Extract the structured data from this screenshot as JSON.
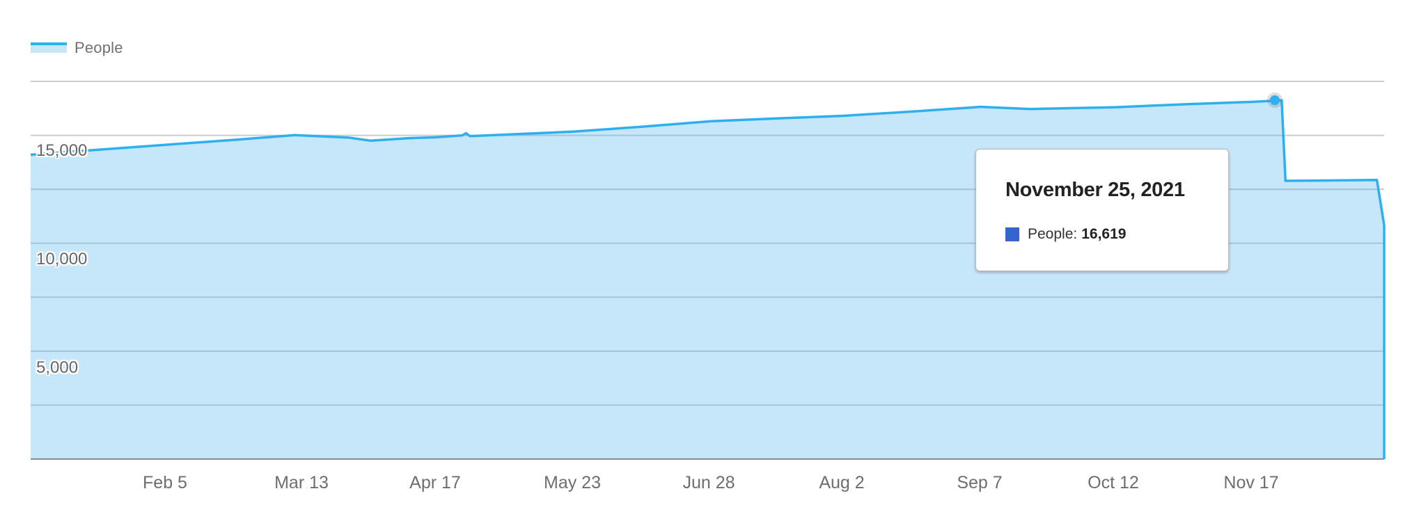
{
  "legend": {
    "label": "People",
    "line_color": "#2eaff0",
    "fill_color": "#c6e6f9"
  },
  "y_axis": {
    "labels": [
      {
        "text": "15,000",
        "value": 15000
      },
      {
        "text": "10,000",
        "value": 10000
      },
      {
        "text": "5,000",
        "value": 5000
      }
    ]
  },
  "x_axis": {
    "labels": [
      "Feb 5",
      "Mar 13",
      "Apr 17",
      "May 23",
      "Jun 28",
      "Aug 2",
      "Sep 7",
      "Oct 12",
      "Nov 17"
    ]
  },
  "tooltip": {
    "title": "November 25, 2021",
    "series_label": "People:",
    "value": "16,619",
    "swatch_color": "#3366cc"
  },
  "chart_data": {
    "type": "area",
    "title": "",
    "xlabel": "",
    "ylabel": "",
    "legend": [
      "People"
    ],
    "legend_position": "top-left",
    "grid": true,
    "ylim": [
      0,
      17500
    ],
    "y_gridlines": [
      2500,
      5000,
      7500,
      10000,
      12500,
      15000,
      17500
    ],
    "y_tick_labels": [
      "5,000",
      "10,000",
      "15,000"
    ],
    "x_tick_labels": [
      "Feb 5",
      "Mar 13",
      "Apr 17",
      "May 23",
      "Jun 28",
      "Aug 2",
      "Sep 7",
      "Oct 12",
      "Nov 17"
    ],
    "series": [
      {
        "name": "People",
        "color": "#2eaff0",
        "points": [
          {
            "x": "Jan 2",
            "value": 14100
          },
          {
            "x": "Jan 16",
            "value": 14300
          },
          {
            "x": "Feb 5",
            "value": 14560
          },
          {
            "x": "Feb 24",
            "value": 14800
          },
          {
            "x": "Mar 11",
            "value": 15010
          },
          {
            "x": "Mar 25",
            "value": 14900
          },
          {
            "x": "Mar 31",
            "value": 14750
          },
          {
            "x": "Apr 10",
            "value": 14870
          },
          {
            "x": "Apr 17",
            "value": 14910
          },
          {
            "x": "Apr 24",
            "value": 15000
          },
          {
            "x": "Apr 25",
            "value": 15100
          },
          {
            "x": "Apr 26",
            "value": 14960
          },
          {
            "x": "May 23",
            "value": 15170
          },
          {
            "x": "Jun 10",
            "value": 15400
          },
          {
            "x": "Jun 28",
            "value": 15650
          },
          {
            "x": "Jul 15",
            "value": 15780
          },
          {
            "x": "Aug 2",
            "value": 15905
          },
          {
            "x": "Aug 20",
            "value": 16100
          },
          {
            "x": "Sep 7",
            "value": 16320
          },
          {
            "x": "Sep 20",
            "value": 16220
          },
          {
            "x": "Oct 12",
            "value": 16300
          },
          {
            "x": "Nov 1",
            "value": 16450
          },
          {
            "x": "Nov 17",
            "value": 16550
          },
          {
            "x": "Nov 25",
            "value": 16619
          },
          {
            "x": "Nov 26",
            "value": 12890
          },
          {
            "x": "Dec 20",
            "value": 12930
          },
          {
            "x": "Dec 22",
            "value": 10830
          },
          {
            "x": "Dec 24",
            "value": 10830
          },
          {
            "x": "Dec 25",
            "value": 0
          }
        ]
      }
    ],
    "highlighted_point": {
      "date": "November 25, 2021",
      "series": "People",
      "value": 16619
    }
  }
}
